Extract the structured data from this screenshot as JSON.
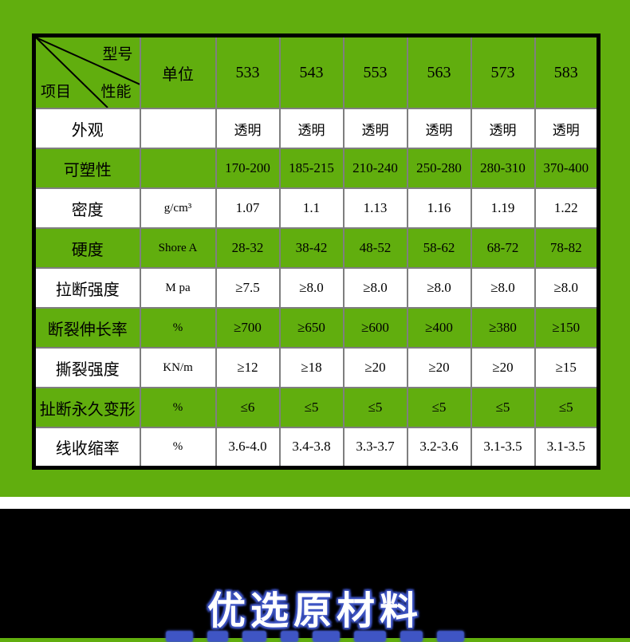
{
  "colors": {
    "page_green": "#61ae0e",
    "grid_gray": "#7f7f7f",
    "outer_border": "#000000",
    "row_white": "#ffffff",
    "banner_bg": "#000000",
    "title_fill": "#ffffff",
    "title_glow": "#3f55c4"
  },
  "table": {
    "corner": {
      "top_label": "型号",
      "middle_label": "性能",
      "bottom_label": "项目"
    },
    "unit_header": "单位",
    "models": [
      "533",
      "543",
      "553",
      "563",
      "573",
      "583"
    ],
    "rows": [
      {
        "name": "外观",
        "unit": "",
        "shade": "white",
        "values": [
          "透明",
          "透明",
          "透明",
          "透明",
          "透明",
          "透明"
        ]
      },
      {
        "name": "可塑性",
        "unit": "",
        "shade": "green",
        "values": [
          "170-200",
          "185-215",
          "210-240",
          "250-280",
          "280-310",
          "370-400"
        ]
      },
      {
        "name": "密度",
        "unit": "g/cm³",
        "shade": "white",
        "values": [
          "1.07",
          "1.1",
          "1.13",
          "1.16",
          "1.19",
          "1.22"
        ]
      },
      {
        "name": "硬度",
        "unit": "Shore A",
        "shade": "green",
        "values": [
          "28-32",
          "38-42",
          "48-52",
          "58-62",
          "68-72",
          "78-82"
        ]
      },
      {
        "name": "拉断强度",
        "unit": "M pa",
        "shade": "white",
        "values": [
          "≥7.5",
          "≥8.0",
          "≥8.0",
          "≥8.0",
          "≥8.0",
          "≥8.0"
        ]
      },
      {
        "name": "断裂伸长率",
        "unit": "%",
        "shade": "green",
        "values": [
          "≥700",
          "≥650",
          "≥600",
          "≥400",
          "≥380",
          "≥150"
        ]
      },
      {
        "name": "撕裂强度",
        "unit": "KN/m",
        "shade": "white",
        "values": [
          "≥12",
          "≥18",
          "≥20",
          "≥20",
          "≥20",
          "≥15"
        ]
      },
      {
        "name": "扯断永久变形",
        "unit": "%",
        "shade": "green",
        "values": [
          "≤6",
          "≤5",
          "≤5",
          "≤5",
          "≤5",
          "≤5"
        ]
      },
      {
        "name": "线收缩率",
        "unit": "%",
        "shade": "white",
        "values": [
          "3.6-4.0",
          "3.4-3.8",
          "3.3-3.7",
          "3.2-3.6",
          "3.1-3.5",
          "3.1-3.5"
        ]
      }
    ]
  },
  "banner": {
    "title": "优选原材料"
  }
}
